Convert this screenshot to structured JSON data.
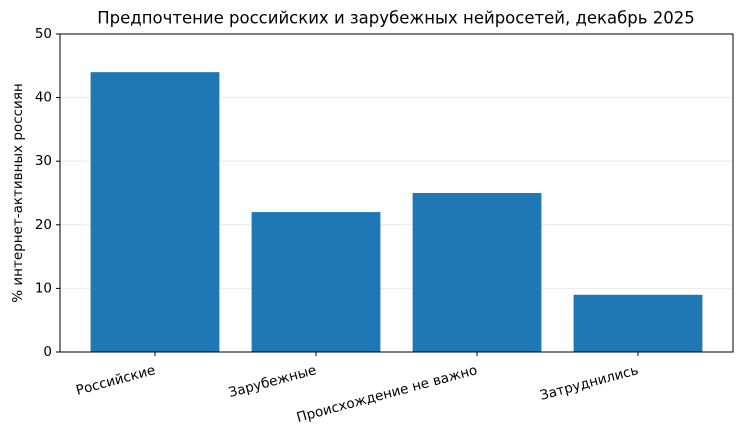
{
  "chart_data": {
    "type": "bar",
    "title": "Предпочтение российских и зарубежных нейросетей, декабрь 2025",
    "y_label": "% интернет-активных россиян",
    "categories": [
      "Российские",
      "Зарубежные",
      "Происхождение не важно",
      "Затруднились"
    ],
    "values": [
      44,
      22,
      25,
      9
    ],
    "color": "#1f77b4",
    "ylim": [
      0,
      50
    ],
    "yticks": [
      0,
      10,
      20,
      30,
      40,
      50
    ],
    "grid": true
  }
}
